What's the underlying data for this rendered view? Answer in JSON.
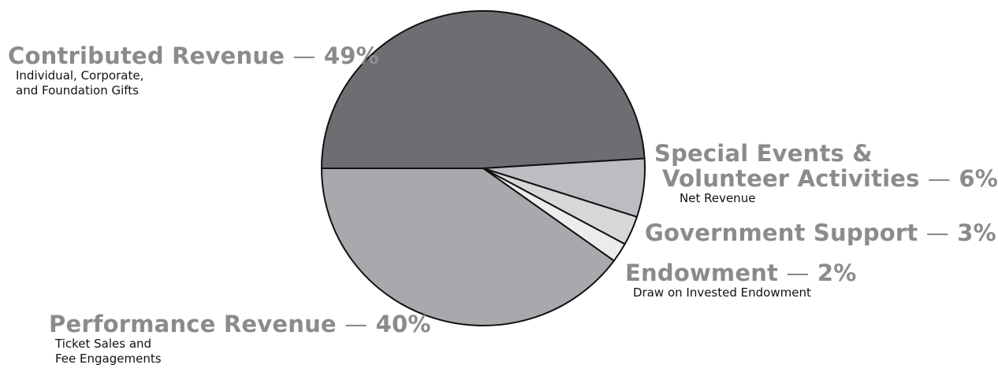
{
  "chart_data": {
    "type": "pie",
    "slices": [
      {
        "label": "Contributed Revenue",
        "value": 49,
        "pct_label": "49%",
        "detail": [
          "Individual, Corporate,",
          "and Foundation Gifts"
        ],
        "color": "#6d6e71"
      },
      {
        "label": "Special Events & Volunteer Activities",
        "label_lines": [
          "Special Events &",
          "Volunteer Activities"
        ],
        "value": 6,
        "pct_label": "6%",
        "detail": [
          "Net Revenue"
        ],
        "color": "#bcbdc0"
      },
      {
        "label": "Government Support",
        "value": 3,
        "pct_label": "3%",
        "detail": [],
        "color": "#d6d7d9"
      },
      {
        "label": "Endowment",
        "value": 2,
        "pct_label": "2%",
        "detail": [
          "Draw on Invested Endowment"
        ],
        "color": "#ececed"
      },
      {
        "label": "Performance Revenue",
        "value": 40,
        "pct_label": "40%",
        "detail": [
          "Ticket Sales and",
          "Fee Engagements"
        ],
        "color": "#a7a9ac"
      }
    ],
    "dash": "—"
  }
}
